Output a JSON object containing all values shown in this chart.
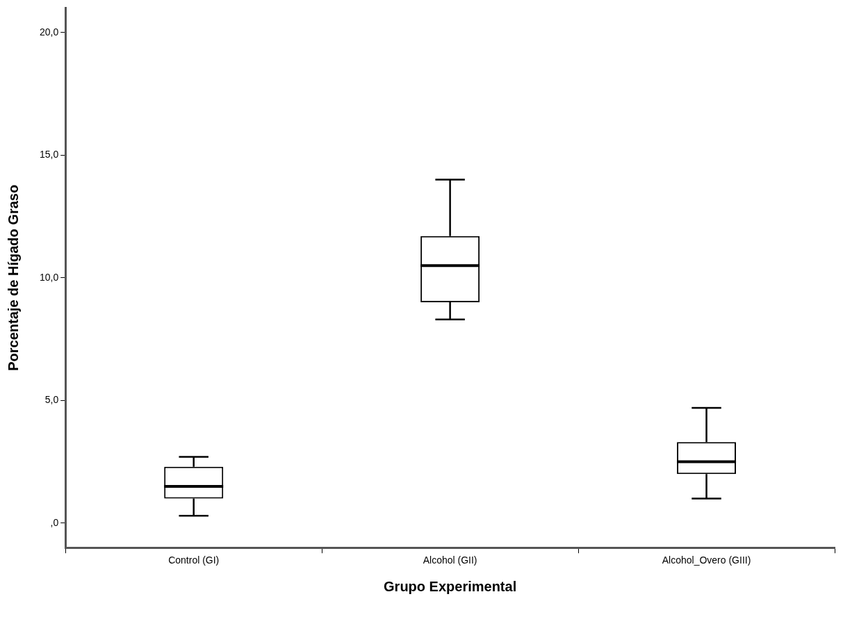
{
  "chart_data": {
    "type": "box",
    "xlabel": "Grupo Experimental",
    "ylabel": "Porcentaje de Hígado Graso",
    "categories": [
      "Control (GI)",
      "Alcohol (GII)",
      "Alcohol_Overo (GIII)"
    ],
    "boxes": [
      {
        "low": 0.3,
        "q1": 1.0,
        "median": 1.5,
        "q3": 2.3,
        "high": 2.7
      },
      {
        "low": 8.3,
        "q1": 9.0,
        "median": 10.5,
        "q3": 11.7,
        "high": 14.0
      },
      {
        "low": 1.0,
        "q1": 2.0,
        "median": 2.5,
        "q3": 3.3,
        "high": 4.7
      }
    ],
    "ylim": [
      -1,
      21
    ],
    "yticks": [
      {
        "value": 0,
        "label": ",0"
      },
      {
        "value": 5,
        "label": "5,0"
      },
      {
        "value": 10,
        "label": "10,0"
      },
      {
        "value": 15,
        "label": "15,0"
      },
      {
        "value": 20,
        "label": "20,0"
      }
    ],
    "grid": false,
    "legend": false
  }
}
